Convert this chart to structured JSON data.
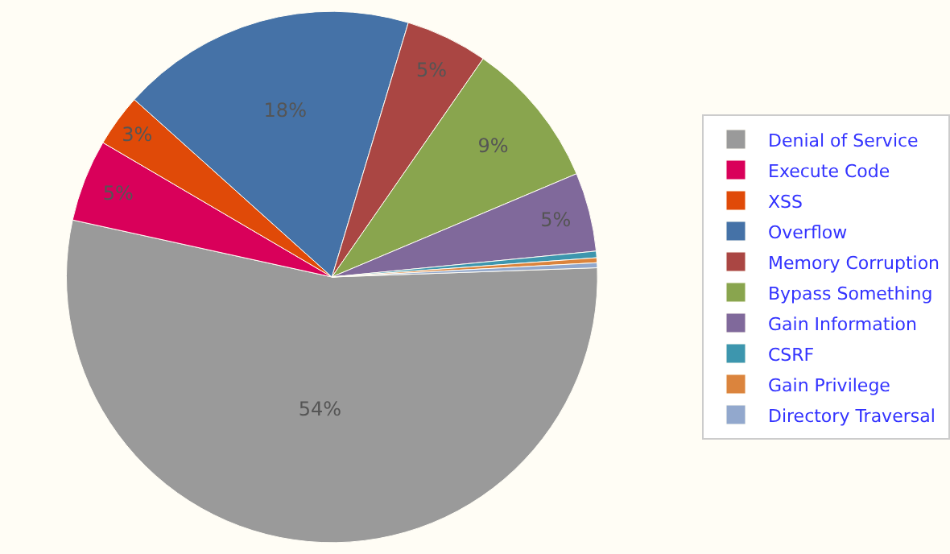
{
  "chart_data": {
    "type": "pie",
    "categories": [
      "Denial of Service",
      "Execute Code",
      "XSS",
      "Overflow",
      "Memory Corruption",
      "Bypass Something",
      "Gain Information",
      "CSRF",
      "Gain Privilege",
      "Directory Traversal"
    ],
    "values": [
      54,
      5,
      3.2,
      18,
      5,
      9,
      4.8,
      0.4,
      0.3,
      0.3
    ],
    "colors": [
      "#9a9a9a",
      "#d9005a",
      "#e04a08",
      "#4572a7",
      "#aa4643",
      "#89a54e",
      "#80699b",
      "#3d96ae",
      "#db843d",
      "#92a8cd"
    ],
    "value_labels": [
      "54%",
      "5%",
      "3%",
      "18%",
      "5%",
      "9%",
      "5%",
      null,
      null,
      null
    ],
    "legend": "right"
  }
}
